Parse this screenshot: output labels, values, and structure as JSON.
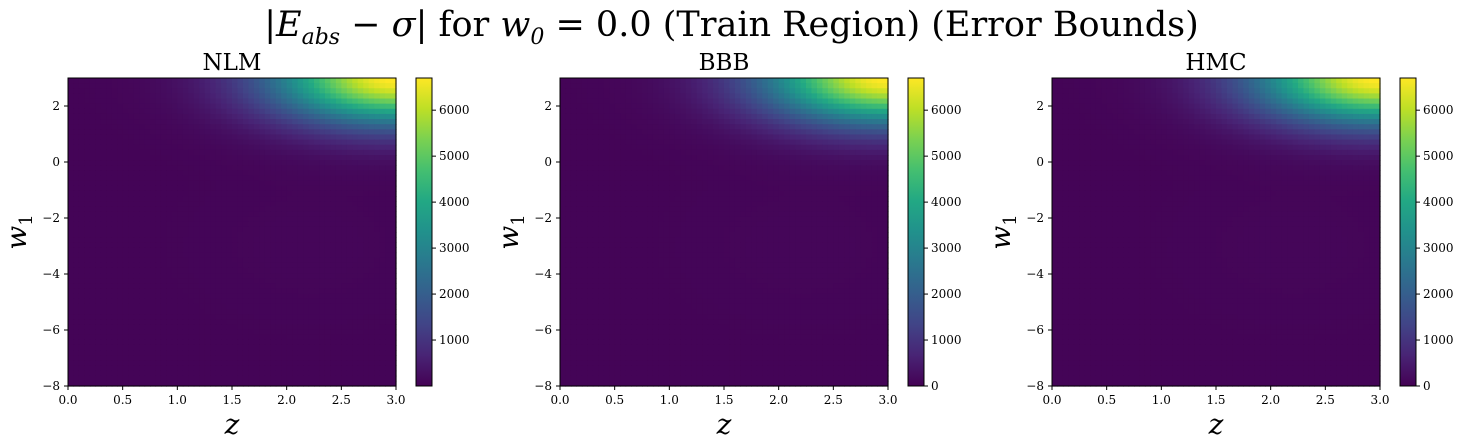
{
  "figure": {
    "title_parts": {
      "expr_left": "|E",
      "expr_sub": "abs",
      "expr_right": " − σ|",
      "text_for": " for ",
      "var": "w",
      "var_sub": "0",
      "eq": " = 0.0 (Train Region) (Error Bounds)"
    }
  },
  "colormap": "viridis",
  "chart_data": [
    {
      "type": "heatmap",
      "title": "NLM",
      "xlabel": "z",
      "ylabel": "w1",
      "xlim": [
        0.0,
        3.0
      ],
      "ylim": [
        -8,
        3
      ],
      "xticks": [
        "0.0",
        "0.5",
        "1.0",
        "1.5",
        "2.0",
        "2.5",
        "3.0"
      ],
      "yticks": [
        "−8",
        "−6",
        "−4",
        "−2",
        "0",
        "2"
      ],
      "colorbar": {
        "min": 0,
        "max": 6700,
        "ticks": [
          "1000",
          "2000",
          "3000",
          "4000",
          "5000",
          "6000"
        ]
      },
      "peak_value": 6700,
      "peak_location": {
        "z": 3.0,
        "w1": 3.0
      }
    },
    {
      "type": "heatmap",
      "title": "BBB",
      "xlabel": "z",
      "ylabel": "w1",
      "xlim": [
        0.0,
        3.0
      ],
      "ylim": [
        -8,
        3
      ],
      "xticks": [
        "0.0",
        "0.5",
        "1.0",
        "1.5",
        "2.0",
        "2.5",
        "3.0"
      ],
      "yticks": [
        "−8",
        "−6",
        "−4",
        "−2",
        "0",
        "2"
      ],
      "colorbar": {
        "min": 0,
        "max": 6700,
        "ticks": [
          "0",
          "1000",
          "2000",
          "3000",
          "4000",
          "5000",
          "6000"
        ]
      },
      "peak_value": 6700,
      "peak_location": {
        "z": 3.0,
        "w1": 3.0
      }
    },
    {
      "type": "heatmap",
      "title": "HMC",
      "xlabel": "z",
      "ylabel": "w1",
      "xlim": [
        0.0,
        3.0
      ],
      "ylim": [
        -8,
        3
      ],
      "xticks": [
        "0.0",
        "0.5",
        "1.0",
        "1.5",
        "2.0",
        "2.5",
        "3.0"
      ],
      "yticks": [
        "−8",
        "−6",
        "−4",
        "−2",
        "0",
        "2"
      ],
      "colorbar": {
        "min": 0,
        "max": 6700,
        "ticks": [
          "0",
          "1000",
          "2000",
          "3000",
          "4000",
          "5000",
          "6000"
        ]
      },
      "peak_value": 6700,
      "peak_location": {
        "z": 3.0,
        "w1": 3.0
      }
    }
  ]
}
